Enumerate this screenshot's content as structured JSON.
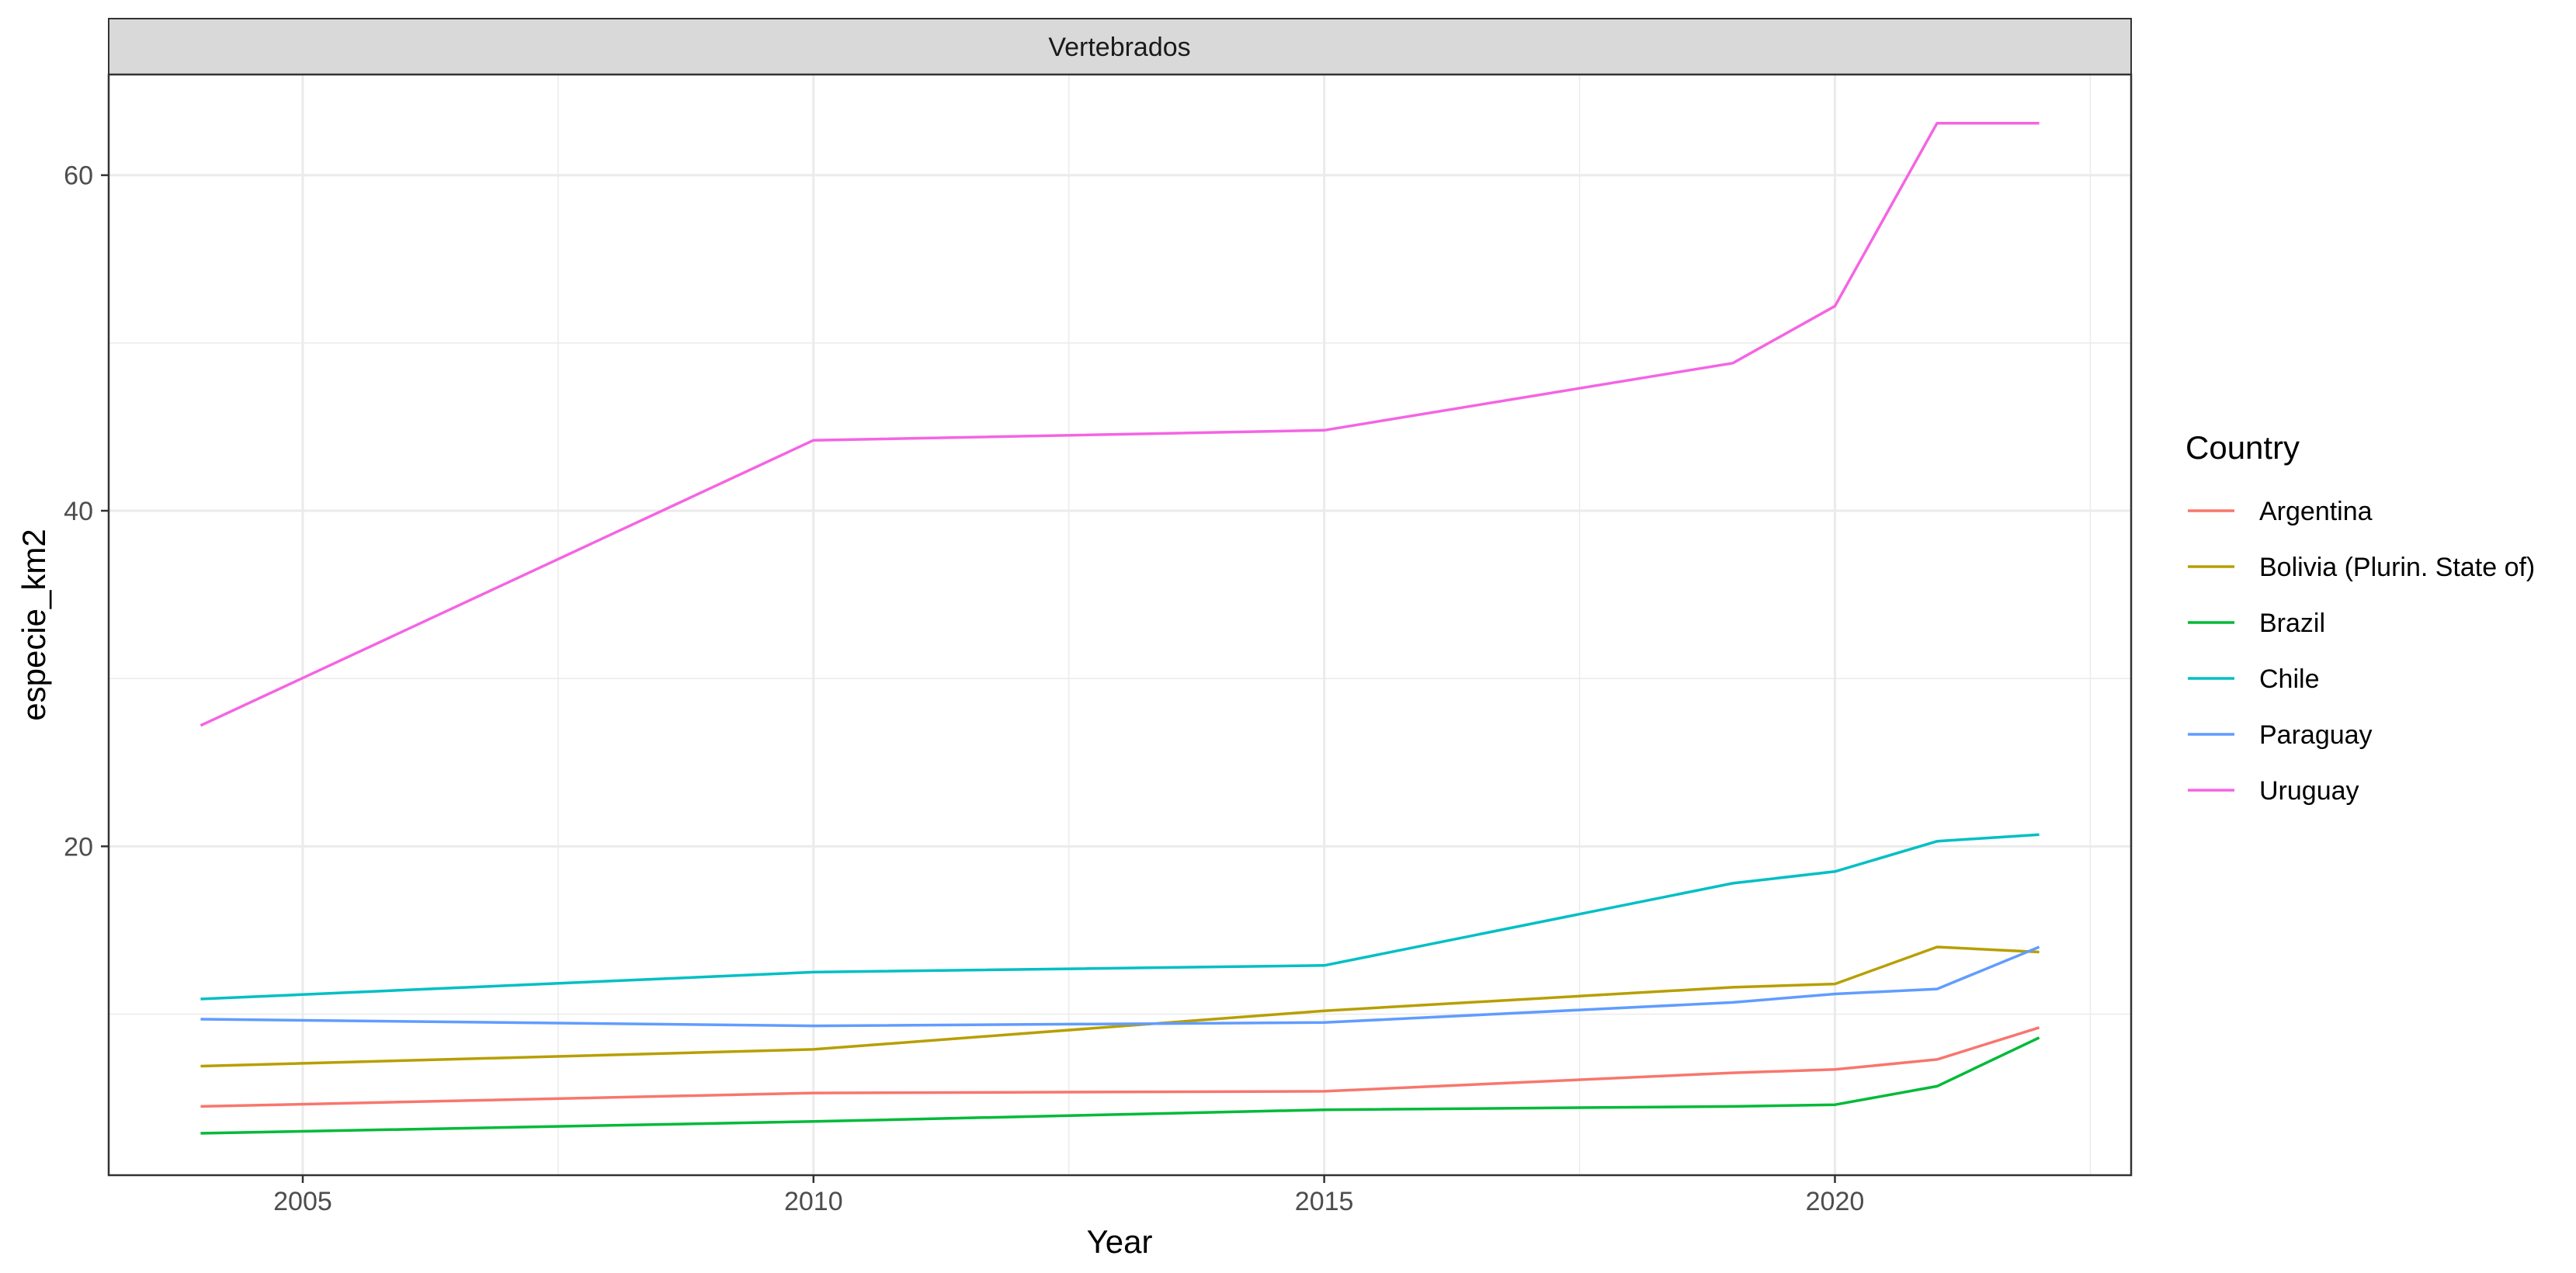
{
  "chart_data": {
    "type": "line",
    "facet_title": "Vertebrados",
    "xlabel": "Year",
    "ylabel": "especie_km2",
    "x_ticks": [
      2005,
      2010,
      2015,
      2020
    ],
    "y_ticks": [
      20,
      40,
      60
    ],
    "xlim": [
      2003.1,
      2022.9
    ],
    "ylim": [
      0.4,
      66.0
    ],
    "grid": true,
    "legend": {
      "title": "Country",
      "position": "right"
    },
    "x": [
      2004,
      2010,
      2015,
      2019,
      2020,
      2021,
      2022
    ],
    "series": [
      {
        "name": "Argentina",
        "color": "#F8766D",
        "values": [
          4.5,
          5.3,
          5.4,
          6.5,
          6.7,
          7.3,
          9.2
        ]
      },
      {
        "name": "Bolivia (Plurin. State of)",
        "color": "#B79F00",
        "values": [
          6.9,
          7.9,
          10.2,
          11.6,
          11.8,
          14.0,
          13.7
        ]
      },
      {
        "name": "Brazil",
        "color": "#00BA38",
        "values": [
          2.9,
          3.6,
          4.3,
          4.5,
          4.6,
          5.7,
          8.6
        ]
      },
      {
        "name": "Chile",
        "color": "#00BFC4",
        "values": [
          10.9,
          12.5,
          12.9,
          17.8,
          18.5,
          20.3,
          20.7
        ]
      },
      {
        "name": "Paraguay",
        "color": "#619CFF",
        "values": [
          9.7,
          9.3,
          9.5,
          10.7,
          11.2,
          11.5,
          14.0
        ]
      },
      {
        "name": "Uruguay",
        "color": "#F564E3",
        "values": [
          27.2,
          44.2,
          44.8,
          48.8,
          52.2,
          63.1,
          63.1
        ]
      }
    ]
  }
}
